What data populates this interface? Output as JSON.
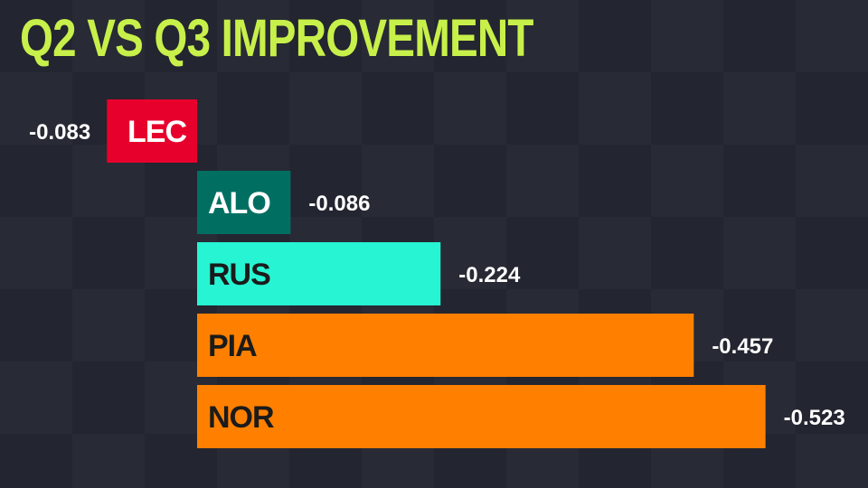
{
  "chart_data": {
    "type": "bar",
    "orientation": "horizontal",
    "title": "Q2 VS Q3 IMPROVEMENT",
    "categories": [
      "LEC",
      "ALO",
      "RUS",
      "PIA",
      "NOR"
    ],
    "values": [
      -0.083,
      -0.086,
      -0.224,
      -0.457,
      -0.523
    ],
    "value_labels": [
      "-0.083",
      "-0.086",
      "-0.224",
      "-0.457",
      "-0.523"
    ],
    "colors": [
      "#e8002d",
      "#006f62",
      "#27f4d2",
      "#ff8000",
      "#ff8000"
    ],
    "label_colors": [
      "#ffffff",
      "#ffffff",
      "#1b1b1b",
      "#1b1b1b",
      "#1b1b1b"
    ],
    "grid": false,
    "legend": "none"
  }
}
